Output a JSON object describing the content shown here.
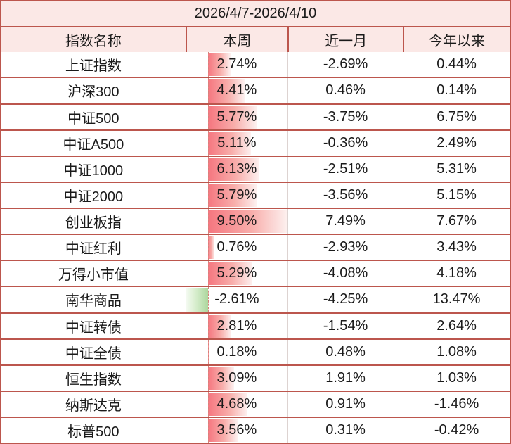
{
  "date_range": "2026/4/7-2026/4/10",
  "columns": [
    "指数名称",
    "本周",
    "近一月",
    "今年以来"
  ],
  "chart_data": {
    "type": "table",
    "title": "2026/4/7-2026/4/10",
    "columns": [
      "指数名称",
      "本周",
      "近一月",
      "今年以来"
    ],
    "databar_column": "本周",
    "databar_min": -2.61,
    "databar_max": 9.5,
    "value_format": "percent_two_decimals",
    "rows": [
      {
        "name": "上证指数",
        "week": 2.74,
        "month": -2.69,
        "ytd": 0.44
      },
      {
        "name": "沪深300",
        "week": 4.41,
        "month": 0.46,
        "ytd": 0.14
      },
      {
        "name": "中证500",
        "week": 5.77,
        "month": -3.75,
        "ytd": 6.75
      },
      {
        "name": "中证A500",
        "week": 5.11,
        "month": -0.36,
        "ytd": 2.49
      },
      {
        "name": "中证1000",
        "week": 6.13,
        "month": -2.51,
        "ytd": 5.31
      },
      {
        "name": "中证2000",
        "week": 5.79,
        "month": -3.56,
        "ytd": 5.15
      },
      {
        "name": "创业板指",
        "week": 9.5,
        "month": 7.49,
        "ytd": 7.67
      },
      {
        "name": "中证红利",
        "week": 0.76,
        "month": -2.93,
        "ytd": 3.43
      },
      {
        "name": "万得小市值",
        "week": 5.29,
        "month": -4.08,
        "ytd": 4.18
      },
      {
        "name": "南华商品",
        "week": -2.61,
        "month": -4.25,
        "ytd": 13.47
      },
      {
        "name": "中证转债",
        "week": 2.81,
        "month": -1.54,
        "ytd": 2.64
      },
      {
        "name": "中证全债",
        "week": 0.18,
        "month": 0.48,
        "ytd": 1.08
      },
      {
        "name": "恒生指数",
        "week": 3.09,
        "month": 1.91,
        "ytd": 1.03
      },
      {
        "name": "纳斯达克",
        "week": 4.68,
        "month": 0.91,
        "ytd": -1.46
      },
      {
        "name": "标普500",
        "week": 3.56,
        "month": 0.31,
        "ytd": -0.42
      }
    ]
  },
  "colors": {
    "border": "#bc564d",
    "header_bg": "#fbe8e6",
    "gridline": "#ddd3d1",
    "bar_positive": "#f5767f",
    "bar_negative": "#abd69d",
    "axis_dash": "#d4837b",
    "text": "#1a1a1a"
  }
}
